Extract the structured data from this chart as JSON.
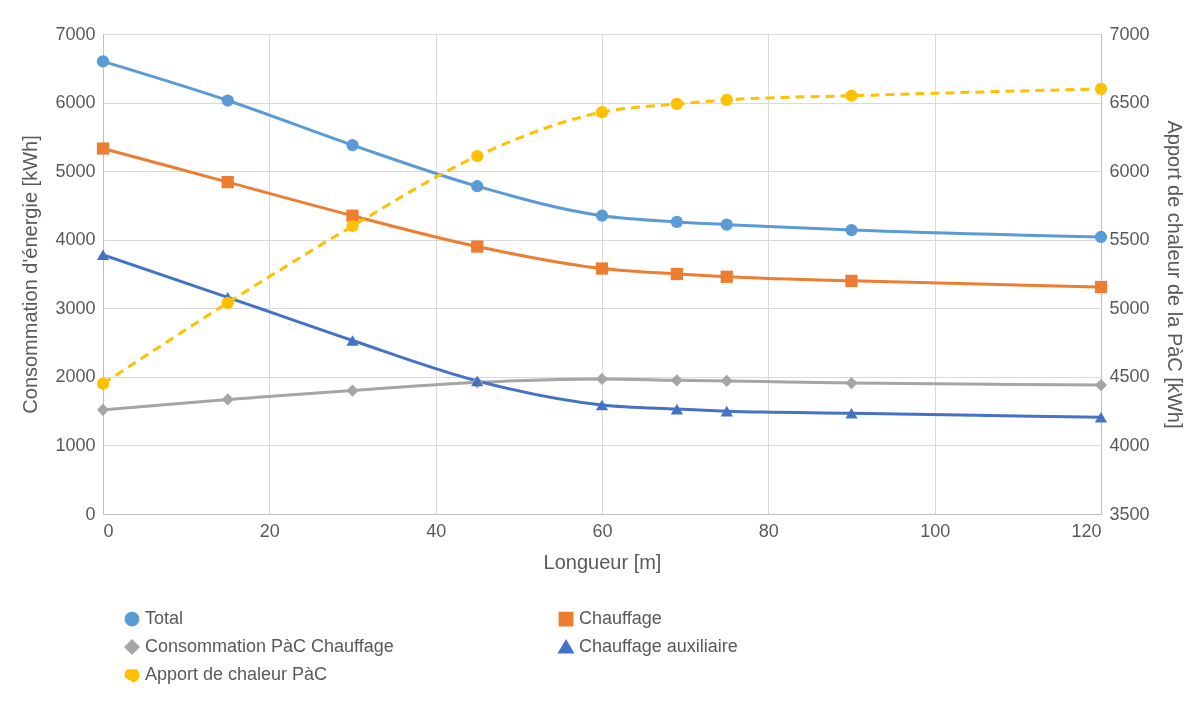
{
  "chart_data": {
    "type": "line",
    "xlabel": "Longueur [m]",
    "ylabel": "Consommation d'énergie [kWh]",
    "y2label": "Apport de chaleur de la PàC [kWh]",
    "x": [
      0,
      15,
      30,
      45,
      60,
      69,
      75,
      90,
      120
    ],
    "xlim": [
      0,
      120
    ],
    "xticks": [
      0,
      20,
      40,
      60,
      80,
      100,
      120
    ],
    "ylim": [
      0,
      7000
    ],
    "yticks": [
      0,
      1000,
      2000,
      3000,
      4000,
      5000,
      6000,
      7000
    ],
    "y2lim": [
      3500,
      7000
    ],
    "y2ticks": [
      3500,
      4000,
      4500,
      5000,
      5500,
      6000,
      6500,
      7000
    ],
    "grid": true,
    "legend": "bottom",
    "series": [
      {
        "name": "Total",
        "color": "#5b9bd5",
        "marker": "circle",
        "line_style": "solid",
        "values": [
          6600,
          6030,
          5380,
          4780,
          4350,
          4260,
          4220,
          4140,
          4040
        ]
      },
      {
        "name": "Chauffage",
        "color": "#ed7d31",
        "marker": "square",
        "line_style": "solid",
        "values": [
          5330,
          4840,
          4350,
          3900,
          3580,
          3500,
          3460,
          3400,
          3310
        ]
      },
      {
        "name": "Consommation PàC Chauffage",
        "color": "#a5a5a5",
        "marker": "diamond",
        "line_style": "solid",
        "values": [
          1520,
          1670,
          1800,
          1920,
          1970,
          1950,
          1940,
          1910,
          1880
        ]
      },
      {
        "name": "Chauffage auxiliaire",
        "color": "#4472c4",
        "marker": "triangle",
        "line_style": "solid",
        "values": [
          3780,
          3160,
          2530,
          1940,
          1590,
          1530,
          1500,
          1470,
          1410
        ]
      },
      {
        "name": "Apport de chaleur PàC",
        "color": "#ffc000",
        "marker": "circle",
        "line_style": "dashed",
        "axis": "y2",
        "values": [
          4450,
          5040,
          5600,
          6110,
          6430,
          6490,
          6520,
          6550,
          6600
        ]
      }
    ]
  }
}
